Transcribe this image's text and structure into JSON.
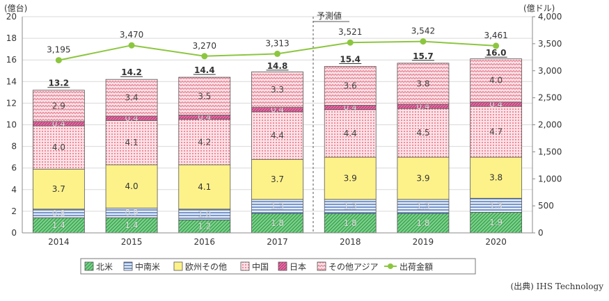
{
  "chart_data": {
    "type": "bar",
    "stacked": true,
    "categories": [
      "2014",
      "2015",
      "2016",
      "2017",
      "2018",
      "2019",
      "2020"
    ],
    "left_axis": {
      "unit_label": "(億台)",
      "range": [
        0,
        20
      ],
      "ticks": [
        "0",
        "2",
        "4",
        "6",
        "8",
        "10",
        "12",
        "14",
        "16",
        "18",
        "20"
      ]
    },
    "right_axis": {
      "unit_label": "(億ドル)",
      "range": [
        0,
        4000
      ],
      "ticks": [
        "0",
        "500",
        "1,000",
        "1,500",
        "2,000",
        "2,500",
        "3,000",
        "3,500",
        "4,000"
      ]
    },
    "series": [
      {
        "name": "北米",
        "key": "na",
        "color": "#5bbf6f",
        "labels": [
          "1.4",
          "1.4",
          "1.2",
          "1.8",
          "1.8",
          "1.8",
          "1.9"
        ],
        "values": [
          1.4,
          1.4,
          1.2,
          1.8,
          1.8,
          1.8,
          1.9
        ]
      },
      {
        "name": "中南米",
        "key": "la",
        "color": "#4a72b8",
        "labels": [
          "0.8",
          "0.9",
          "1.0",
          "1.3",
          "1.3",
          "1.3",
          "1.3"
        ],
        "values": [
          0.8,
          0.9,
          1.0,
          1.3,
          1.3,
          1.3,
          1.3
        ]
      },
      {
        "name": "欧州その他",
        "key": "eu",
        "color": "#fdf28a",
        "labels": [
          "3.7",
          "4.0",
          "4.1",
          "3.7",
          "3.9",
          "3.9",
          "3.8"
        ],
        "values": [
          3.7,
          4.0,
          4.1,
          3.7,
          3.9,
          3.9,
          3.8
        ]
      },
      {
        "name": "中国",
        "key": "cn",
        "color": "#f39aa6",
        "labels": [
          "4.0",
          "4.1",
          "4.2",
          "4.4",
          "4.4",
          "4.5",
          "4.7"
        ],
        "values": [
          4.0,
          4.1,
          4.2,
          4.4,
          4.4,
          4.5,
          4.7
        ]
      },
      {
        "name": "日本",
        "key": "jp",
        "color": "#d8538b",
        "labels": [
          "0.4",
          "0.4",
          "0.4",
          "0.4",
          "0.4",
          "0.4",
          "0.4"
        ],
        "values": [
          0.4,
          0.4,
          0.4,
          0.4,
          0.4,
          0.4,
          0.4
        ]
      },
      {
        "name": "その他アジア",
        "key": "as",
        "color": "#e4788b",
        "labels": [
          "2.9",
          "3.4",
          "3.5",
          "3.3",
          "3.6",
          "3.8",
          "4.0"
        ],
        "values": [
          2.9,
          3.4,
          3.5,
          3.3,
          3.6,
          3.8,
          4.0
        ]
      }
    ],
    "totals": [
      "13.2",
      "14.2",
      "14.4",
      "14.8",
      "15.4",
      "15.7",
      "16.0"
    ],
    "total_values": [
      13.2,
      14.2,
      14.4,
      14.8,
      15.4,
      15.7,
      16.0
    ],
    "line_series": {
      "name": "出荷金額",
      "color": "#8cc63f",
      "labels": [
        "3,195",
        "3,470",
        "3,270",
        "3,313",
        "3,521",
        "3,542",
        "3,461"
      ],
      "values": [
        3195,
        3470,
        3270,
        3313,
        3521,
        3542,
        3461
      ]
    },
    "forecast_label": "予測値",
    "forecast_start": "2018",
    "legend_position": "bottom",
    "source": "(出典) IHS Technology"
  }
}
